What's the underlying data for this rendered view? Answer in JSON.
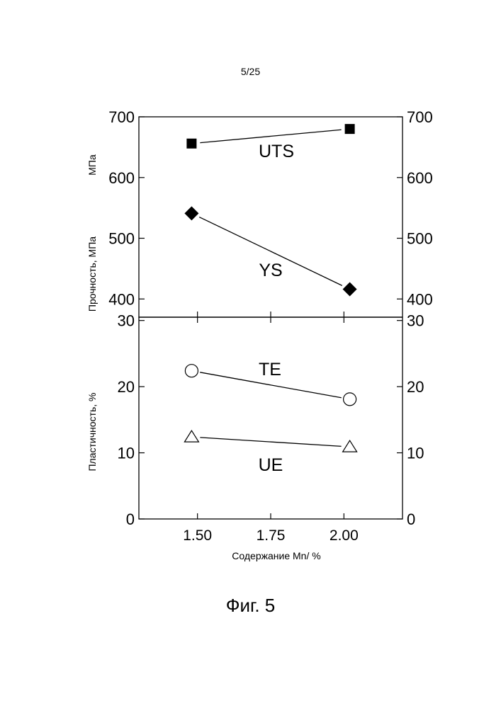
{
  "page_number": "5/25",
  "figure_caption": "Фиг. 5",
  "chart_data": [
    {
      "type": "line",
      "panel": "top",
      "ylabel": "Прочность, МПа",
      "ylabel_secondary": "МПа",
      "ylim": [
        370,
        700
      ],
      "yticks": [
        400,
        500,
        600,
        700
      ],
      "ytick_labels": [
        "400",
        "500",
        "600",
        "700"
      ],
      "series": [
        {
          "name": "UTS",
          "marker": "filled-square",
          "x": [
            1.48,
            2.02
          ],
          "values": [
            656,
            680
          ]
        },
        {
          "name": "YS",
          "marker": "filled-diamond",
          "x": [
            1.48,
            2.02
          ],
          "values": [
            541,
            416
          ]
        }
      ]
    },
    {
      "type": "line",
      "panel": "bottom",
      "xlabel": "Содержание Mn/ %",
      "ylabel": "Пластичность, %",
      "xlim": [
        1.3,
        2.2
      ],
      "xticks": [
        1.5,
        1.75,
        2.0
      ],
      "xtick_labels": [
        "1.50",
        "1.75",
        "2.00"
      ],
      "ylim": [
        0,
        30.5
      ],
      "yticks": [
        0,
        10,
        20,
        30
      ],
      "ytick_labels": [
        "0",
        "10",
        "20",
        "30"
      ],
      "series": [
        {
          "name": "TE",
          "marker": "open-circle",
          "x": [
            1.48,
            2.02
          ],
          "values": [
            22.4,
            18.1
          ]
        },
        {
          "name": "UE",
          "marker": "open-triangle",
          "x": [
            1.48,
            2.02
          ],
          "values": [
            12.4,
            10.9
          ]
        }
      ]
    }
  ]
}
